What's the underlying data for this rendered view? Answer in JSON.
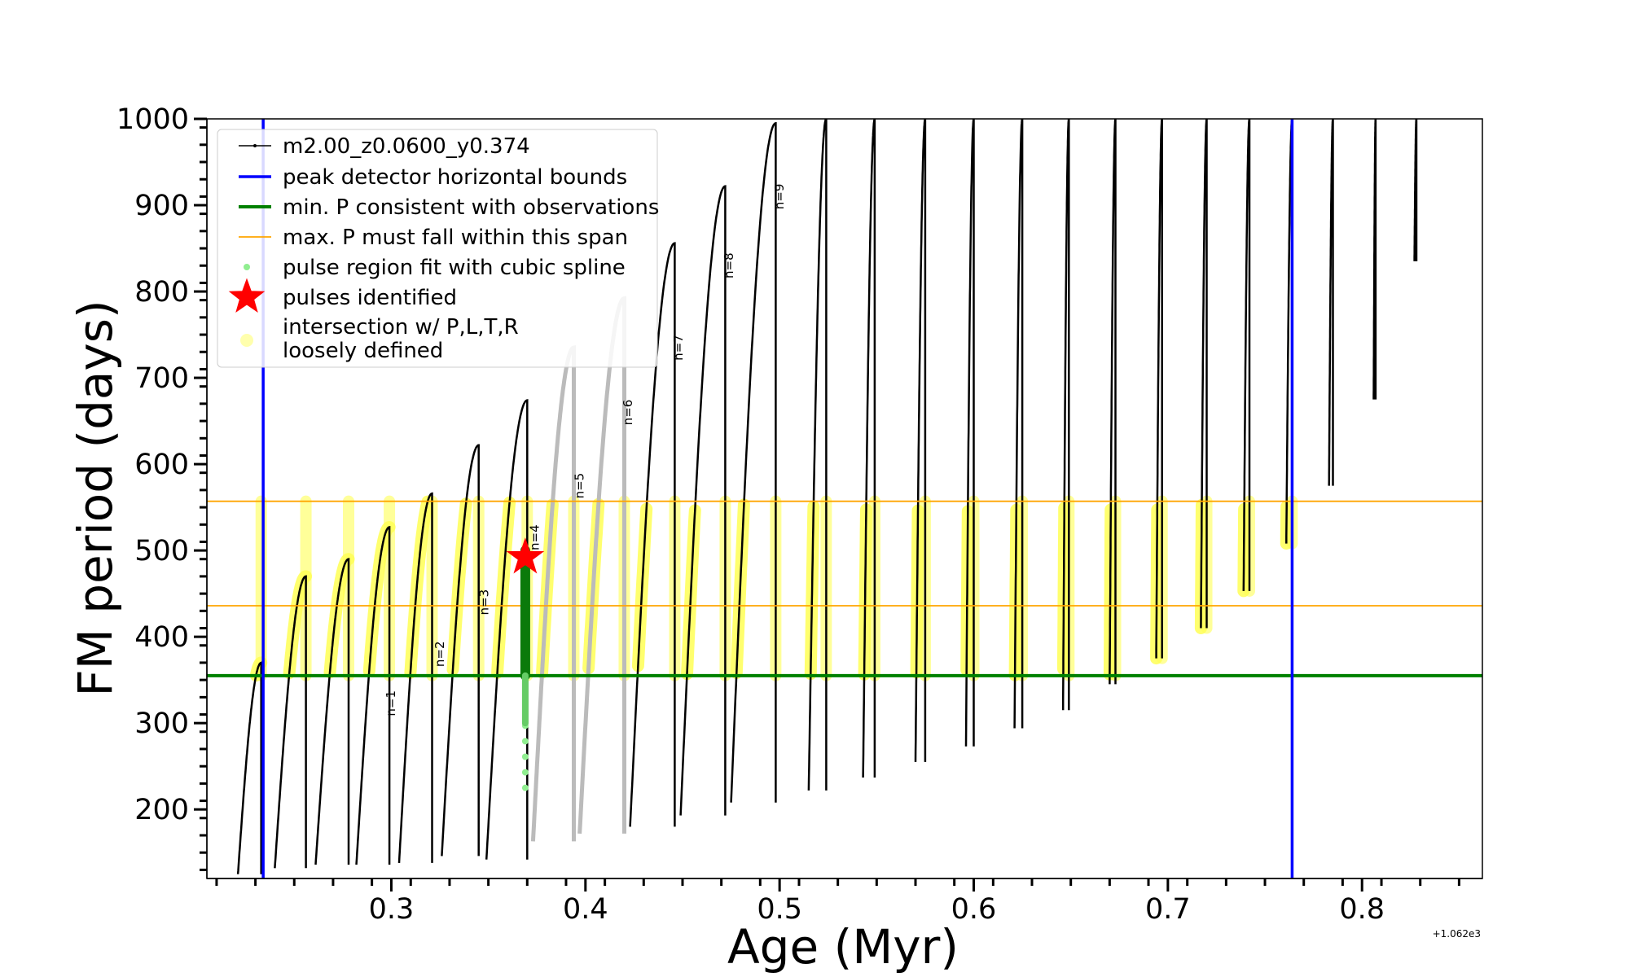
{
  "chart_data": {
    "type": "line",
    "xlabel": "Age (Myr)",
    "ylabel": "FM period (days)",
    "xlim": [
      0.205,
      0.862
    ],
    "ylim": [
      120,
      1000
    ],
    "x_offset_label": "+1.062e3",
    "x_ticks": [
      0.3,
      0.4,
      0.5,
      0.6,
      0.7,
      0.8
    ],
    "x_tick_labels": [
      "0.3",
      "0.4",
      "0.5",
      "0.6",
      "0.7",
      "0.8"
    ],
    "y_ticks": [
      200,
      300,
      400,
      500,
      600,
      700,
      800,
      900,
      1000
    ],
    "y_tick_labels": [
      "200",
      "300",
      "400",
      "500",
      "600",
      "700",
      "800",
      "900",
      "1000"
    ],
    "legend": [
      {
        "key": "track",
        "label": "m2.00_z0.0600_y0.374",
        "color": "#000000"
      },
      {
        "key": "vbound",
        "label": "peak detector horizontal bounds",
        "color": "#0000ff"
      },
      {
        "key": "minp",
        "label": "min. P consistent with observations",
        "color": "#008000"
      },
      {
        "key": "maxp",
        "label": "max. P must fall within this span",
        "color": "#ffa500"
      },
      {
        "key": "spline",
        "label": "pulse region fit with cubic spline",
        "color": "#90ee90"
      },
      {
        "key": "star",
        "label": "pulses identified",
        "color": "#ff0000"
      },
      {
        "key": "intersect",
        "label": "intersection w/ P,L,T,R",
        "label2": "loosely defined",
        "color": "#ffff80"
      }
    ],
    "series": [
      {
        "name": "m2.00_z0.0600_y0.374",
        "pulses": [
          {
            "x": 0.233,
            "min": 125,
            "peak": 370,
            "dur": 0.012
          },
          {
            "x": 0.256,
            "min": 132,
            "peak": 470,
            "dur": 0.016
          },
          {
            "x": 0.278,
            "min": 136,
            "peak": 490,
            "dur": 0.017
          },
          {
            "x": 0.299,
            "min": 136,
            "peak": 527,
            "dur": 0.017
          },
          {
            "x": 0.321,
            "min": 138,
            "peak": 566,
            "dur": 0.017
          },
          {
            "x": 0.345,
            "min": 146,
            "peak": 622,
            "dur": 0.019
          },
          {
            "x": 0.37,
            "min": 142,
            "peak": 674,
            "dur": 0.021
          },
          {
            "x": 0.394,
            "min": 163,
            "peak": 735,
            "dur": 0.021
          },
          {
            "x": 0.42,
            "min": 172,
            "peak": 792,
            "dur": 0.023
          },
          {
            "x": 0.446,
            "min": 180,
            "peak": 856,
            "dur": 0.023
          },
          {
            "x": 0.472,
            "min": 193,
            "peak": 922,
            "dur": 0.023
          },
          {
            "x": 0.498,
            "min": 208,
            "peak": 995,
            "dur": 0.023
          },
          {
            "x": 0.524,
            "min": 222,
            "peak": 1000,
            "dur": 0.009
          },
          {
            "x": 0.549,
            "min": 237,
            "peak": 1000,
            "dur": 0.006
          },
          {
            "x": 0.575,
            "min": 255,
            "peak": 1000,
            "dur": 0.005
          },
          {
            "x": 0.6,
            "min": 273,
            "peak": 1000,
            "dur": 0.004
          },
          {
            "x": 0.625,
            "min": 294,
            "peak": 1000,
            "dur": 0.004
          },
          {
            "x": 0.649,
            "min": 315,
            "peak": 1000,
            "dur": 0.003
          },
          {
            "x": 0.673,
            "min": 345,
            "peak": 1000,
            "dur": 0.003
          },
          {
            "x": 0.697,
            "min": 375,
            "peak": 1000,
            "dur": 0.003
          },
          {
            "x": 0.72,
            "min": 410,
            "peak": 1000,
            "dur": 0.003
          },
          {
            "x": 0.742,
            "min": 453,
            "peak": 1000,
            "dur": 0.003
          },
          {
            "x": 0.764,
            "min": 508,
            "peak": 1000,
            "dur": 0.003
          },
          {
            "x": 0.785,
            "min": 575,
            "peak": 1000,
            "dur": 0.002
          },
          {
            "x": 0.807,
            "min": 675,
            "peak": 1000,
            "dur": 0.001
          },
          {
            "x": 0.828,
            "min": 835,
            "peak": 1000,
            "dur": 0.001
          }
        ]
      }
    ],
    "horizontal_lines": [
      {
        "name": "min. P consistent with observations",
        "y": 355,
        "color": "#008000"
      },
      {
        "name": "max. P must fall within this span (upper)",
        "y": 557,
        "color": "#ffa500"
      },
      {
        "name": "max. P must fall within this span (lower)",
        "y": 436,
        "color": "#ffa500"
      }
    ],
    "vertical_lines": [
      {
        "name": "peak detector horizontal bounds (left)",
        "x": 0.234,
        "color": "#0000ff"
      },
      {
        "name": "peak detector horizontal bounds (right)",
        "x": 0.764,
        "color": "#0000ff"
      }
    ],
    "spline_region": {
      "x": 0.369,
      "y_from": 225,
      "y_to": 500
    },
    "star": {
      "x": 0.369,
      "y": 492
    },
    "pulse_labels": [
      {
        "text": "n=1",
        "x": 0.302,
        "y": 323
      },
      {
        "text": "n=2",
        "x": 0.327,
        "y": 380
      },
      {
        "text": "n=3",
        "x": 0.35,
        "y": 440
      },
      {
        "text": "n=4",
        "x": 0.376,
        "y": 515
      },
      {
        "text": "n=5",
        "x": 0.399,
        "y": 575
      },
      {
        "text": "n=6",
        "x": 0.424,
        "y": 660
      },
      {
        "text": "n=7",
        "x": 0.45,
        "y": 735
      },
      {
        "text": "n=8",
        "x": 0.476,
        "y": 830
      },
      {
        "text": "n=9",
        "x": 0.502,
        "y": 910
      }
    ]
  }
}
